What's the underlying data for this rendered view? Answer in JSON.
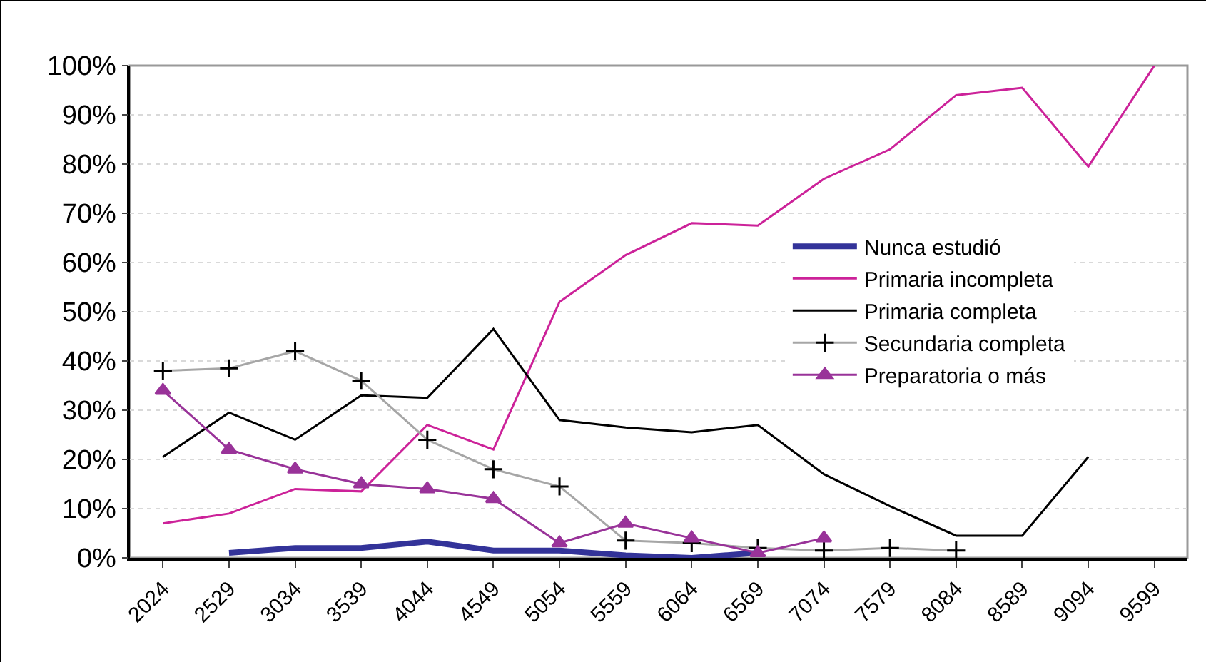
{
  "chart_data": {
    "type": "line",
    "categories": [
      "2024",
      "2529",
      "3034",
      "3539",
      "4044",
      "4549",
      "5054",
      "5559",
      "6064",
      "6569",
      "7074",
      "7579",
      "8084",
      "8589",
      "9094",
      "9599"
    ],
    "series": [
      {
        "name": "Nunca estudió",
        "color": "#333399",
        "marker": "none",
        "values": [
          null,
          1,
          2,
          2,
          3.3,
          1.5,
          1.5,
          0.5,
          0,
          1,
          null,
          null,
          null,
          null,
          null,
          null
        ]
      },
      {
        "name": "Primaria incompleta",
        "color": "#cc2299",
        "marker": "none",
        "values": [
          7,
          9,
          14,
          13.5,
          27,
          22,
          52,
          61.5,
          68,
          67.5,
          77,
          83,
          94,
          95.5,
          79.5,
          100
        ]
      },
      {
        "name": "Primaria completa",
        "color": "#000000",
        "marker": "none",
        "values": [
          20.5,
          29.5,
          24,
          33,
          32.5,
          46.5,
          28,
          26.5,
          25.5,
          27,
          17,
          10.5,
          4.5,
          4.5,
          20.5,
          null
        ]
      },
      {
        "name": "Secundaria completa",
        "color": "#a6a6a6",
        "marker": "cross",
        "values": [
          38,
          38.5,
          42,
          36,
          24,
          18,
          14.5,
          3.5,
          3,
          2,
          1.5,
          2,
          1.5,
          null,
          null,
          null
        ]
      },
      {
        "name": "Preparatoria o más",
        "color": "#993399",
        "marker": "triangle",
        "values": [
          34,
          22,
          18,
          15,
          14,
          12,
          3,
          7,
          4,
          1,
          4,
          null,
          null,
          null,
          null,
          null
        ]
      }
    ],
    "ylim": [
      0,
      100
    ],
    "yticks": [
      {
        "value": 0,
        "label": "0%"
      },
      {
        "value": 10,
        "label": "10%"
      },
      {
        "value": 20,
        "label": "20%"
      },
      {
        "value": 30,
        "label": "30%"
      },
      {
        "value": 40,
        "label": "40%"
      },
      {
        "value": 50,
        "label": "50%"
      },
      {
        "value": 60,
        "label": "60%"
      },
      {
        "value": 70,
        "label": "70%"
      },
      {
        "value": 80,
        "label": "80%"
      },
      {
        "value": 90,
        "label": "90%"
      },
      {
        "value": 100,
        "label": "100%"
      }
    ],
    "grid": "y",
    "legend": "right"
  }
}
